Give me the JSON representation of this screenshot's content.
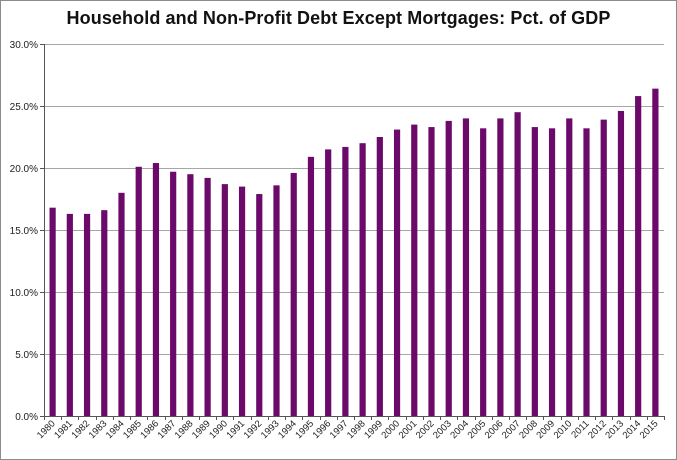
{
  "chart_data": {
    "type": "bar",
    "title": "Household and Non-Profit Debt Except Mortgages:  Pct. of GDP",
    "xlabel": "",
    "ylabel": "",
    "ylim": [
      0,
      30
    ],
    "y_tick_values": [
      0,
      5,
      10,
      15,
      20,
      25,
      30
    ],
    "y_tick_labels": [
      "0.0%",
      "5.0%",
      "10.0%",
      "15.0%",
      "20.0%",
      "25.0%",
      "30.0%"
    ],
    "grid": "horizontal",
    "legend": "none",
    "bar_color": "#6b0a6b",
    "categories": [
      "1980",
      "1981",
      "1982",
      "1983",
      "1984",
      "1985",
      "1986",
      "1987",
      "1988",
      "1989",
      "1990",
      "1991",
      "1992",
      "1993",
      "1994",
      "1995",
      "1996",
      "1997",
      "1998",
      "1999",
      "2000",
      "2001",
      "2002",
      "2003",
      "2004",
      "2005",
      "2006",
      "2007",
      "2008",
      "2009",
      "2010",
      "2011",
      "2012",
      "2013",
      "2014",
      "2015"
    ],
    "values": [
      16.8,
      16.3,
      16.3,
      16.6,
      18.0,
      20.1,
      20.4,
      19.7,
      19.5,
      19.2,
      18.7,
      18.5,
      17.9,
      18.6,
      19.6,
      20.9,
      21.5,
      21.7,
      22.0,
      22.5,
      23.1,
      23.5,
      23.3,
      23.8,
      24.0,
      23.2,
      24.0,
      24.5,
      23.3,
      23.2,
      24.0,
      23.2,
      23.9,
      24.6,
      25.8,
      26.4
    ]
  }
}
